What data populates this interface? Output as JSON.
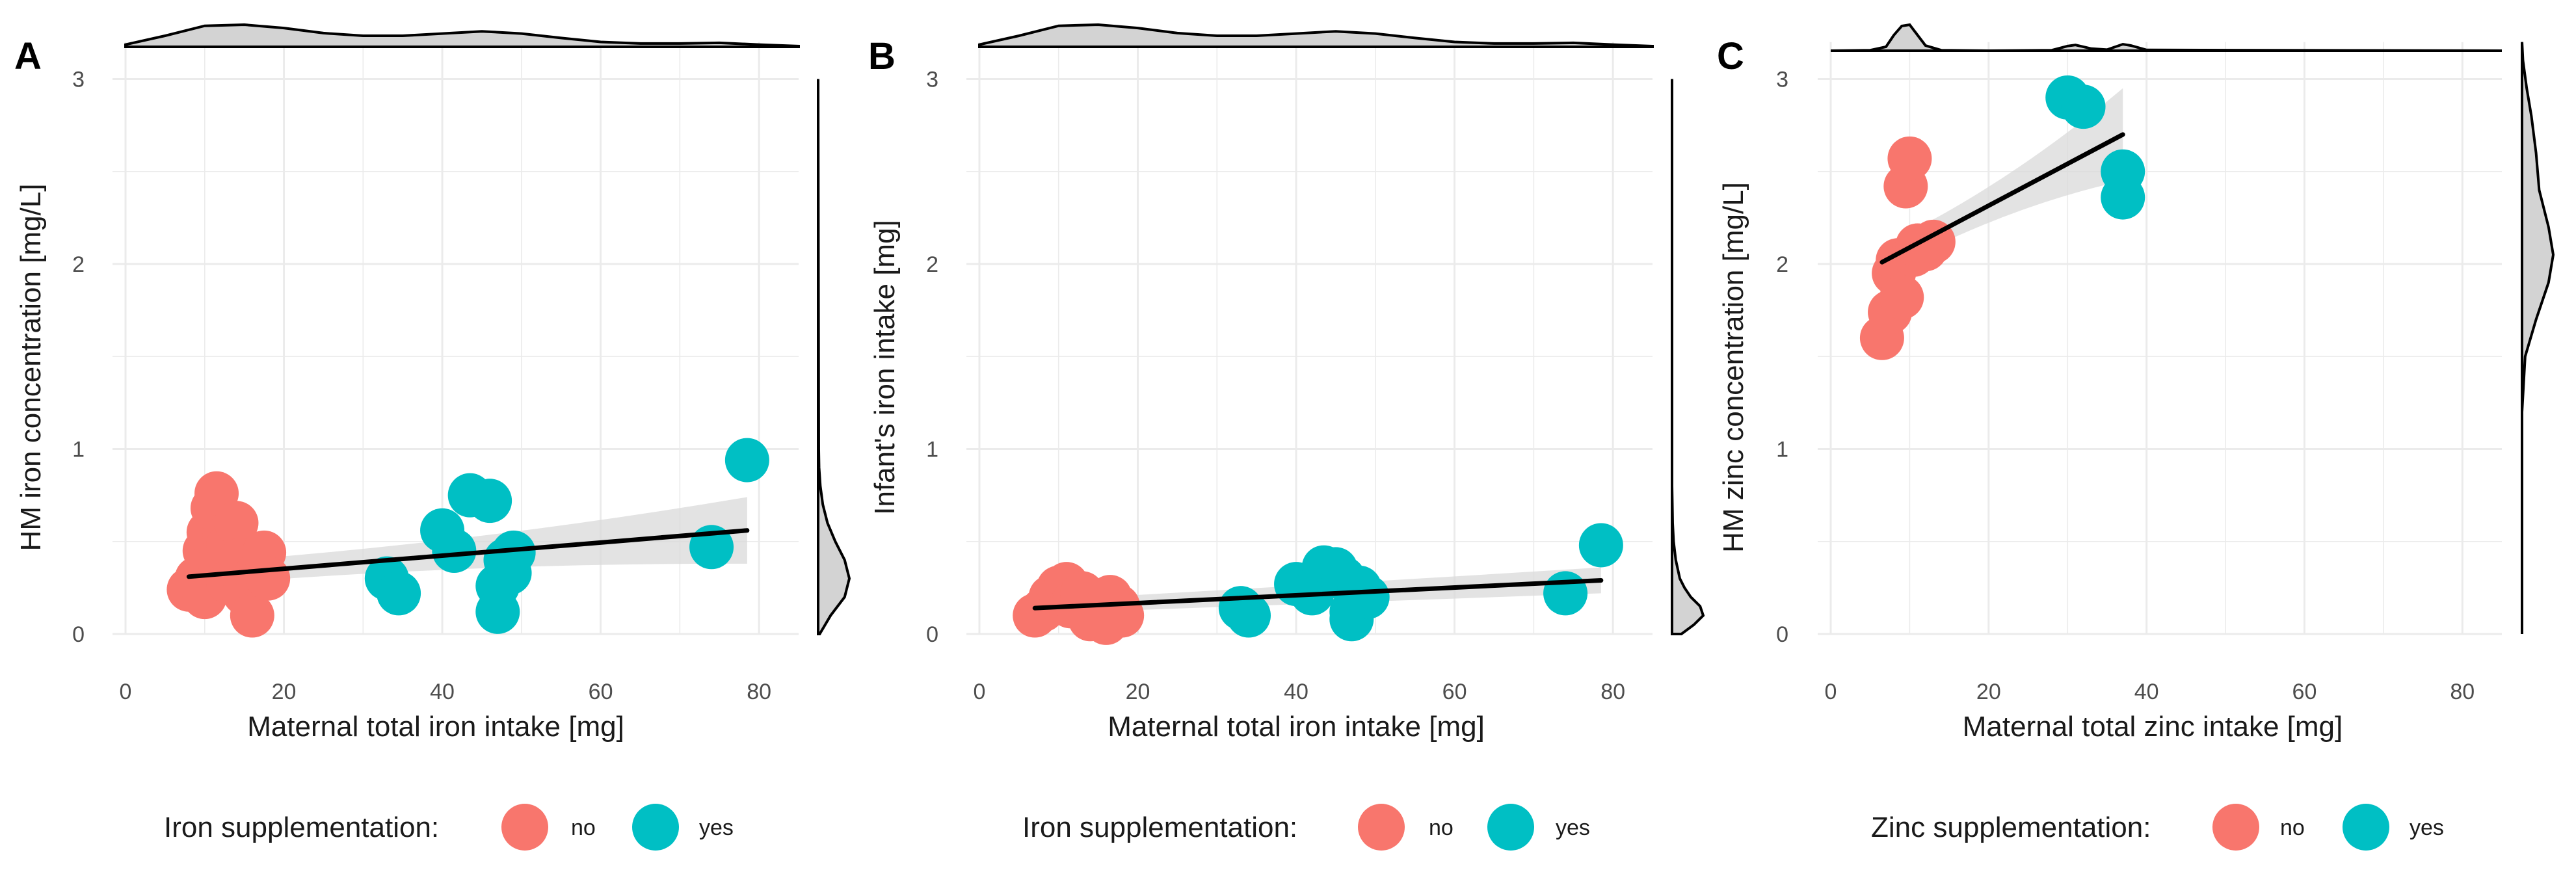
{
  "chart_data": [
    {
      "type": "scatter",
      "panel_label": "A",
      "xlabel": "Maternal total iron intake [mg]",
      "ylabel": "HM iron concentration [mg/L]",
      "xlim": [
        0,
        85
      ],
      "ylim": [
        0,
        3.2
      ],
      "x_ticks": [
        0,
        20,
        40,
        60,
        80
      ],
      "x_tick_labels": [
        "0",
        "20",
        "40",
        "60",
        "80"
      ],
      "y_ticks": [
        0,
        1,
        2,
        3
      ],
      "y_tick_labels": [
        "0",
        "1",
        "2",
        "3"
      ],
      "grid": true,
      "legend": {
        "title": "Iron supplementation:",
        "position": "bottom"
      },
      "series": [
        {
          "name": "no",
          "color": "#F8766D",
          "points": [
            [
              8,
              0.24
            ],
            [
              9,
              0.3
            ],
            [
              10,
              0.2
            ],
            [
              10,
              0.45
            ],
            [
              10.5,
              0.55
            ],
            [
              11,
              0.68
            ],
            [
              11.5,
              0.76
            ],
            [
              12,
              0.35
            ],
            [
              12.5,
              0.52
            ],
            [
              13,
              0.28
            ],
            [
              13,
              0.48
            ],
            [
              14,
              0.6
            ],
            [
              14.5,
              0.4
            ],
            [
              15,
              0.22
            ],
            [
              16,
              0.1
            ],
            [
              16.5,
              0.32
            ],
            [
              17.5,
              0.44
            ],
            [
              18,
              0.3
            ]
          ]
        },
        {
          "name": "yes",
          "color": "#00BFC4",
          "points": [
            [
              33,
              0.3
            ],
            [
              34.5,
              0.22
            ],
            [
              40,
              0.56
            ],
            [
              41.5,
              0.45
            ],
            [
              43.5,
              0.75
            ],
            [
              46,
              0.72
            ],
            [
              47,
              0.26
            ],
            [
              47,
              0.12
            ],
            [
              48,
              0.4
            ],
            [
              48.5,
              0.33
            ],
            [
              49,
              0.44
            ],
            [
              74,
              0.47
            ],
            [
              78.5,
              0.94
            ]
          ]
        }
      ],
      "trend": {
        "x": [
          8,
          78.5
        ],
        "y": [
          0.31,
          0.56
        ],
        "ci_lower_end": [
          0.26,
          0.38
        ],
        "ci_upper_end": [
          0.38,
          0.74
        ]
      },
      "x_density": [
        [
          0,
          0.1
        ],
        [
          5,
          0.5
        ],
        [
          10,
          0.95
        ],
        [
          15,
          1.0
        ],
        [
          20,
          0.85
        ],
        [
          25,
          0.62
        ],
        [
          30,
          0.5
        ],
        [
          35,
          0.5
        ],
        [
          40,
          0.6
        ],
        [
          45,
          0.7
        ],
        [
          50,
          0.6
        ],
        [
          55,
          0.4
        ],
        [
          60,
          0.22
        ],
        [
          65,
          0.15
        ],
        [
          70,
          0.15
        ],
        [
          75,
          0.18
        ],
        [
          80,
          0.1
        ],
        [
          85,
          0.03
        ]
      ],
      "y_density": [
        [
          0,
          0.05
        ],
        [
          0.1,
          0.4
        ],
        [
          0.2,
          0.85
        ],
        [
          0.3,
          1.0
        ],
        [
          0.4,
          0.85
        ],
        [
          0.5,
          0.55
        ],
        [
          0.6,
          0.3
        ],
        [
          0.7,
          0.15
        ],
        [
          0.8,
          0.07
        ],
        [
          0.9,
          0.03
        ],
        [
          1.0,
          0.02
        ],
        [
          3.0,
          0.0
        ]
      ]
    },
    {
      "type": "scatter",
      "panel_label": "B",
      "xlabel": "Maternal total iron intake [mg]",
      "ylabel": "Infant's iron intake [mg]",
      "xlim": [
        0,
        85
      ],
      "ylim": [
        0,
        3.2
      ],
      "x_ticks": [
        0,
        20,
        40,
        60,
        80
      ],
      "x_tick_labels": [
        "0",
        "20",
        "40",
        "60",
        "80"
      ],
      "y_ticks": [
        0,
        1,
        2,
        3
      ],
      "y_tick_labels": [
        "0",
        "1",
        "2",
        "3"
      ],
      "grid": true,
      "legend": {
        "title": "Iron supplementation:",
        "position": "bottom"
      },
      "series": [
        {
          "name": "no",
          "color": "#F8766D",
          "points": [
            [
              7,
              0.1
            ],
            [
              8,
              0.13
            ],
            [
              9,
              0.2
            ],
            [
              10,
              0.25
            ],
            [
              11,
              0.27
            ],
            [
              11.5,
              0.15
            ],
            [
              12,
              0.18
            ],
            [
              13,
              0.22
            ],
            [
              14,
              0.08
            ],
            [
              15,
              0.12
            ],
            [
              16,
              0.06
            ],
            [
              16.5,
              0.2
            ],
            [
              17.5,
              0.15
            ],
            [
              18,
              0.1
            ]
          ]
        },
        {
          "name": "yes",
          "color": "#00BFC4",
          "points": [
            [
              33,
              0.14
            ],
            [
              34,
              0.1
            ],
            [
              40,
              0.27
            ],
            [
              42,
              0.22
            ],
            [
              43.5,
              0.36
            ],
            [
              45,
              0.35
            ],
            [
              46,
              0.3
            ],
            [
              47,
              0.12
            ],
            [
              47,
              0.08
            ],
            [
              48,
              0.25
            ],
            [
              49,
              0.2
            ],
            [
              74,
              0.22
            ],
            [
              78.5,
              0.48
            ]
          ]
        }
      ],
      "trend": {
        "x": [
          7,
          78.5
        ],
        "y": [
          0.14,
          0.29
        ],
        "ci_lower_end": [
          0.11,
          0.22
        ],
        "ci_upper_end": [
          0.18,
          0.36
        ]
      },
      "x_density": [
        [
          0,
          0.1
        ],
        [
          5,
          0.5
        ],
        [
          10,
          0.95
        ],
        [
          15,
          1.0
        ],
        [
          20,
          0.85
        ],
        [
          25,
          0.62
        ],
        [
          30,
          0.5
        ],
        [
          35,
          0.5
        ],
        [
          40,
          0.6
        ],
        [
          45,
          0.7
        ],
        [
          50,
          0.6
        ],
        [
          55,
          0.4
        ],
        [
          60,
          0.22
        ],
        [
          65,
          0.15
        ],
        [
          70,
          0.15
        ],
        [
          75,
          0.18
        ],
        [
          80,
          0.1
        ],
        [
          85,
          0.03
        ]
      ],
      "y_density": [
        [
          0,
          0.3
        ],
        [
          0.05,
          0.7
        ],
        [
          0.1,
          1.0
        ],
        [
          0.15,
          0.9
        ],
        [
          0.2,
          0.6
        ],
        [
          0.25,
          0.4
        ],
        [
          0.3,
          0.25
        ],
        [
          0.4,
          0.12
        ],
        [
          0.5,
          0.05
        ],
        [
          0.6,
          0.02
        ],
        [
          0.8,
          0.0
        ],
        [
          3.0,
          0.0
        ]
      ]
    },
    {
      "type": "scatter",
      "panel_label": "C",
      "xlabel": "Maternal total zinc intake [mg]",
      "ylabel": "HM zinc concentration [mg/L]",
      "xlim": [
        0,
        85
      ],
      "ylim": [
        0,
        3.2
      ],
      "x_ticks": [
        0,
        20,
        40,
        60,
        80
      ],
      "x_tick_labels": [
        "0",
        "20",
        "40",
        "60",
        "80"
      ],
      "y_ticks": [
        0,
        1,
        2,
        3
      ],
      "y_tick_labels": [
        "0",
        "1",
        "2",
        "3"
      ],
      "grid": true,
      "legend": {
        "title": "Zinc supplementation:",
        "position": "bottom"
      },
      "series": [
        {
          "name": "no",
          "color": "#F8766D",
          "points": [
            [
              6.5,
              1.6
            ],
            [
              7.5,
              1.74
            ],
            [
              8,
              1.95
            ],
            [
              8.5,
              2.02
            ],
            [
              9,
              1.82
            ],
            [
              9.5,
              2.42
            ],
            [
              10,
              2.57
            ],
            [
              10.5,
              2.05
            ],
            [
              11,
              2.1
            ],
            [
              12,
              2.08
            ],
            [
              13,
              2.12
            ]
          ]
        },
        {
          "name": "yes",
          "color": "#00BFC4",
          "points": [
            [
              30,
              2.9
            ],
            [
              32,
              2.85
            ],
            [
              37,
              2.5
            ],
            [
              37,
              2.36
            ]
          ]
        }
      ],
      "trend": {
        "x": [
          6.5,
          37
        ],
        "y": [
          2.01,
          2.7
        ],
        "ci_lower_end": [
          1.95,
          2.45
        ],
        "ci_upper_end": [
          2.1,
          2.95
        ]
      },
      "x_density": [
        [
          0,
          0.0
        ],
        [
          5,
          0.02
        ],
        [
          7,
          0.15
        ],
        [
          8,
          0.6
        ],
        [
          9,
          0.95
        ],
        [
          10,
          1.0
        ],
        [
          11,
          0.6
        ],
        [
          12,
          0.2
        ],
        [
          14,
          0.02
        ],
        [
          20,
          0.0
        ],
        [
          28,
          0.02
        ],
        [
          30,
          0.18
        ],
        [
          31,
          0.22
        ],
        [
          33,
          0.08
        ],
        [
          35,
          0.04
        ],
        [
          37,
          0.25
        ],
        [
          38,
          0.2
        ],
        [
          40,
          0.03
        ],
        [
          85,
          0.0
        ]
      ],
      "y_density": [
        [
          0,
          0.0
        ],
        [
          1.2,
          0.0
        ],
        [
          1.5,
          0.1
        ],
        [
          1.7,
          0.45
        ],
        [
          1.9,
          0.85
        ],
        [
          2.05,
          1.0
        ],
        [
          2.2,
          0.85
        ],
        [
          2.4,
          0.55
        ],
        [
          2.6,
          0.45
        ],
        [
          2.8,
          0.3
        ],
        [
          2.95,
          0.15
        ],
        [
          3.1,
          0.03
        ],
        [
          3.2,
          0.0
        ]
      ]
    }
  ],
  "colors": {
    "no": "#F8766D",
    "yes": "#00BFC4",
    "trend": "#000000",
    "ci": "#D9D9D9",
    "density_fill": "#D3D3D3",
    "grid": "#EBEBEB"
  }
}
